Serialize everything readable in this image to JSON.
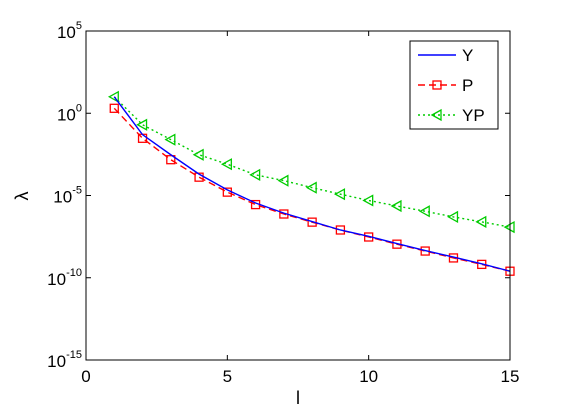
{
  "chart_data": {
    "type": "line",
    "xlabel": "l",
    "ylabel": "λ",
    "xlim": [
      0,
      15
    ],
    "ylim": [
      1e-15,
      100000.0
    ],
    "yscale": "log",
    "grid": false,
    "legend_position": "top-right",
    "x_ticks": [
      0,
      5,
      10,
      15
    ],
    "y_ticks": [
      {
        "base": "10",
        "exp": "-15",
        "value": 1e-15
      },
      {
        "base": "10",
        "exp": "-10",
        "value": 1e-10
      },
      {
        "base": "10",
        "exp": "-5",
        "value": 1e-05
      },
      {
        "base": "10",
        "exp": "0",
        "value": 1
      },
      {
        "base": "10",
        "exp": "5",
        "value": 100000.0
      }
    ],
    "series": [
      {
        "name": "Y",
        "color": "#0000ff",
        "style": "solid",
        "marker": "none",
        "x": [
          1,
          2,
          3,
          4,
          5,
          6,
          7,
          8,
          9,
          10,
          11,
          12,
          13,
          14,
          15
        ],
        "y": [
          10,
          0.05,
          0.003,
          0.0002,
          2.2e-05,
          3.5e-06,
          8.5e-07,
          2.6e-07,
          8e-08,
          3.3e-08,
          1.2e-08,
          4.5e-09,
          1.8e-09,
          7e-10,
          2.5e-10
        ]
      },
      {
        "name": "P",
        "color": "#ff0000",
        "style": "dashed",
        "marker": "square",
        "x": [
          1,
          2,
          3,
          4,
          5,
          6,
          7,
          8,
          9,
          10,
          11,
          12,
          13,
          14,
          15
        ],
        "y": [
          2,
          0.03,
          0.0015,
          0.00013,
          1.6e-05,
          2.8e-06,
          7.5e-07,
          2.4e-07,
          8e-08,
          3e-08,
          1.1e-08,
          4.2e-09,
          1.6e-09,
          6.5e-10,
          2.5e-10
        ]
      },
      {
        "name": "YP",
        "color": "#00cc00",
        "style": "dotted",
        "marker": "triangle-left",
        "x": [
          1,
          2,
          3,
          4,
          5,
          6,
          7,
          8,
          9,
          10,
          11,
          12,
          13,
          14,
          15
        ],
        "y": [
          10,
          0.2,
          0.025,
          0.003,
          0.0008,
          0.00018,
          8e-05,
          3e-05,
          1.2e-05,
          5e-06,
          2.3e-06,
          1.1e-06,
          5e-07,
          2.5e-07,
          1.2e-07
        ]
      }
    ]
  }
}
